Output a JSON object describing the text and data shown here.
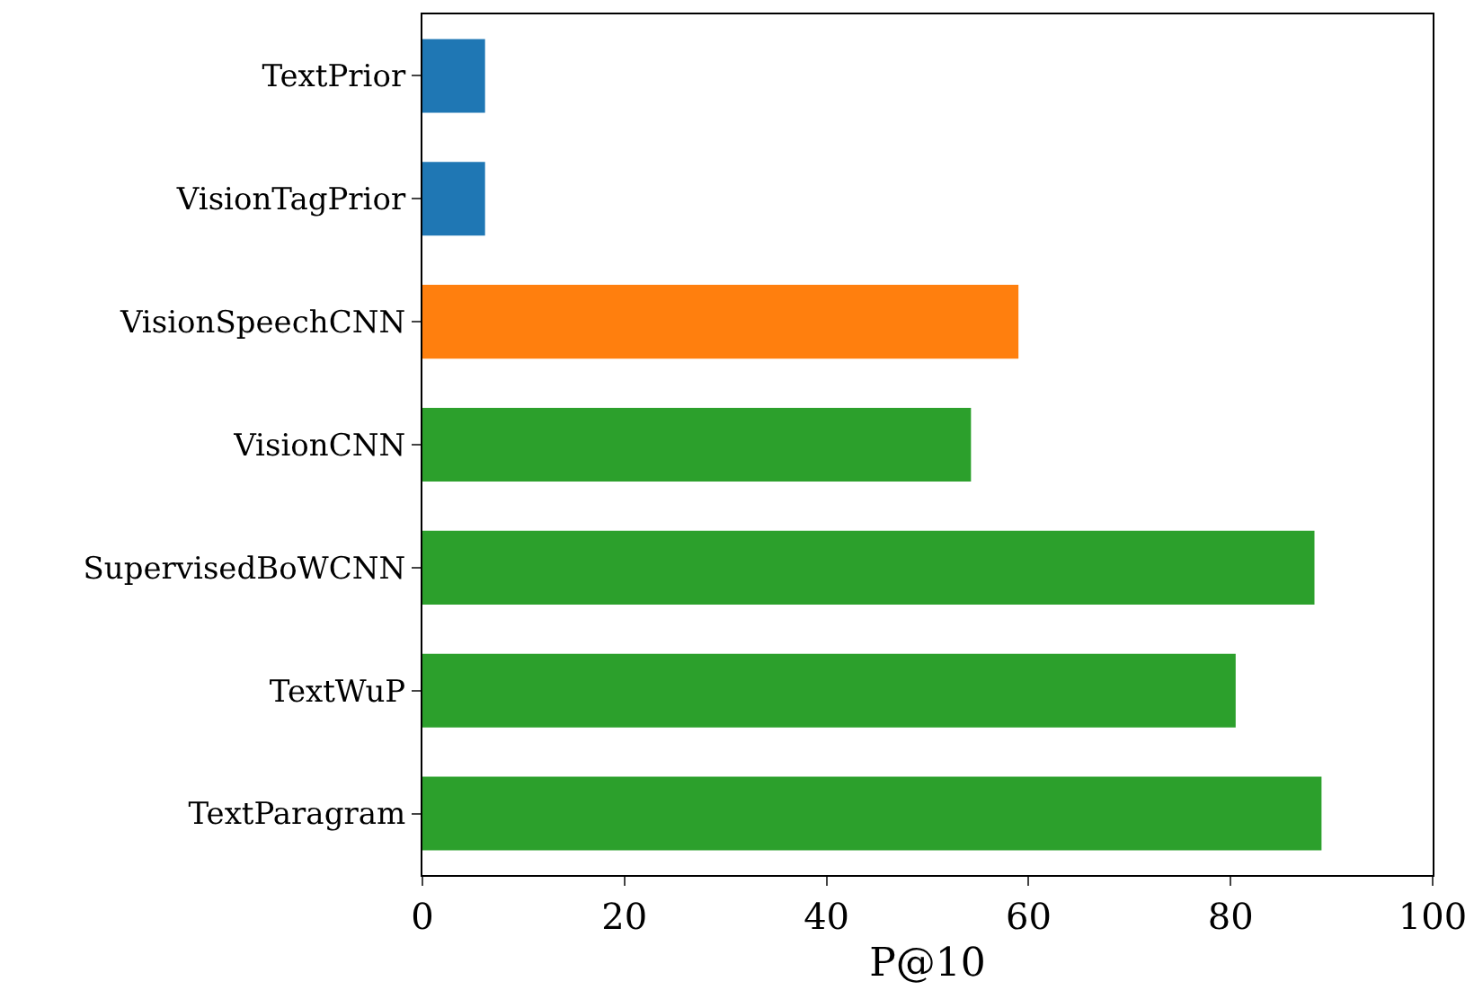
{
  "chart_data": {
    "type": "bar",
    "orientation": "horizontal",
    "xlabel": "P@10",
    "categories": [
      "TextPrior",
      "VisionTagPrior",
      "VisionSpeechCNN",
      "VisionCNN",
      "SupervisedBoWCNN",
      "TextWuP",
      "TextParagram"
    ],
    "values": [
      6.2,
      6.2,
      59,
      54.3,
      88.3,
      80.5,
      89
    ],
    "colors": [
      "#1f77b4",
      "#1f77b4",
      "#ff7f0e",
      "#2ca02c",
      "#2ca02c",
      "#2ca02c",
      "#2ca02c"
    ],
    "xlim": [
      0,
      100
    ],
    "xticks": [
      0,
      20,
      40,
      60,
      80,
      100
    ],
    "grid": false
  }
}
